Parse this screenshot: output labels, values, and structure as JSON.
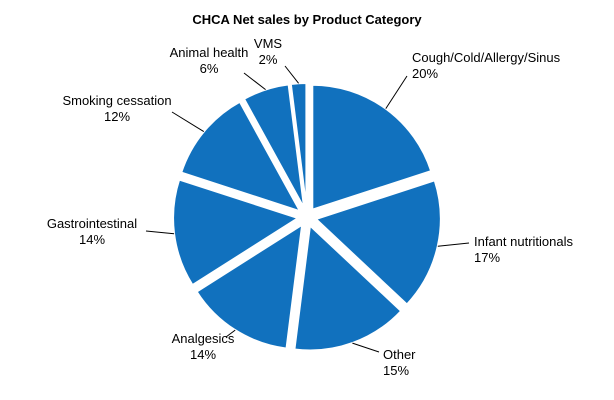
{
  "title": "CHCA Net sales by Product Category",
  "chart_data": {
    "type": "pie",
    "title": "CHCA Net sales by Product Category",
    "slice_color": "#1171BE",
    "leader_line_color": "#000000",
    "start_angle_deg": -90,
    "direction": "clockwise",
    "exploded": true,
    "legend": "none",
    "labels_format": "category name with percent below",
    "categories": [
      "Cough/Cold/Allergy/Sinus",
      "Infant nutritionals",
      "Other",
      "Analgesics",
      "Gastrointestinal",
      "Smoking cessation",
      "Animal health",
      "VMS"
    ],
    "values": [
      20,
      17,
      15,
      14,
      14,
      12,
      6,
      2
    ],
    "slices": [
      {
        "label": "Cough/Cold/Allergy/Sinus",
        "value": 20,
        "display": "20%"
      },
      {
        "label": "Infant nutritionals",
        "value": 17,
        "display": "17%"
      },
      {
        "label": "Other",
        "value": 15,
        "display": "15%"
      },
      {
        "label": "Analgesics",
        "value": 14,
        "display": "14%"
      },
      {
        "label": "Gastrointestinal",
        "value": 14,
        "display": "14%"
      },
      {
        "label": "Smoking cessation",
        "value": 12,
        "display": "12%"
      },
      {
        "label": "Animal health",
        "value": 6,
        "display": "6%"
      },
      {
        "label": "VMS",
        "value": 2,
        "display": "2%"
      }
    ]
  }
}
